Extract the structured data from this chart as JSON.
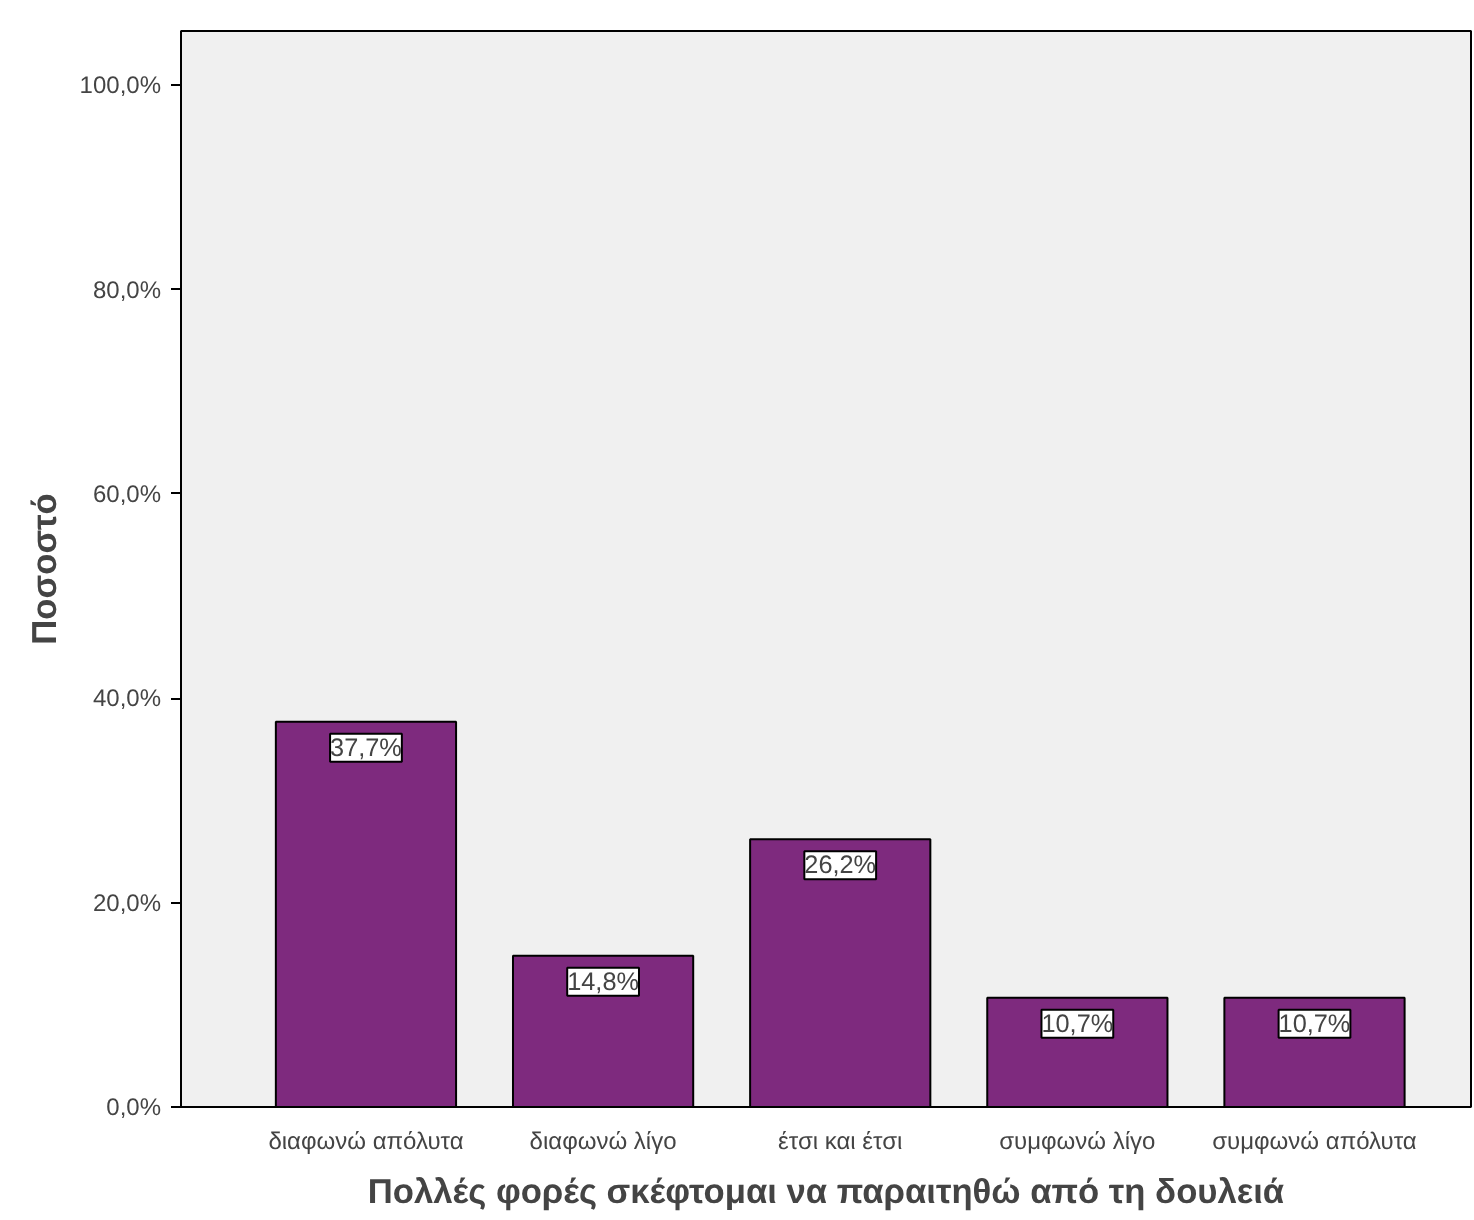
{
  "chart_data": {
    "type": "bar",
    "xlabel": "Πολλές φορές σκέφτομαι να παραιτηθώ από τη δουλειά",
    "ylabel": "Ποσοστό",
    "categories": [
      "διαφωνώ απόλυτα",
      "διαφωνώ λίγο",
      "έτσι και έτσι",
      "συμφωνώ λίγο",
      "συμφωνώ απόλυτα"
    ],
    "values": [
      37.7,
      14.8,
      26.2,
      10.7,
      10.7
    ],
    "value_labels": [
      "37,7%",
      "14,8%",
      "26,2%",
      "10,7%",
      "10,7%"
    ],
    "color": "#7e2a7e",
    "ylim": [
      0,
      105.3
    ],
    "yticks": [
      {
        "value": 0,
        "label": "0,0%"
      },
      {
        "value": 20,
        "label": "20,0%"
      },
      {
        "value": 40,
        "label": "40,0%"
      },
      {
        "value": 60,
        "label": "60,0%"
      },
      {
        "value": 80,
        "label": "80,0%"
      },
      {
        "value": 100,
        "label": "100,0%"
      }
    ],
    "grid": false
  }
}
